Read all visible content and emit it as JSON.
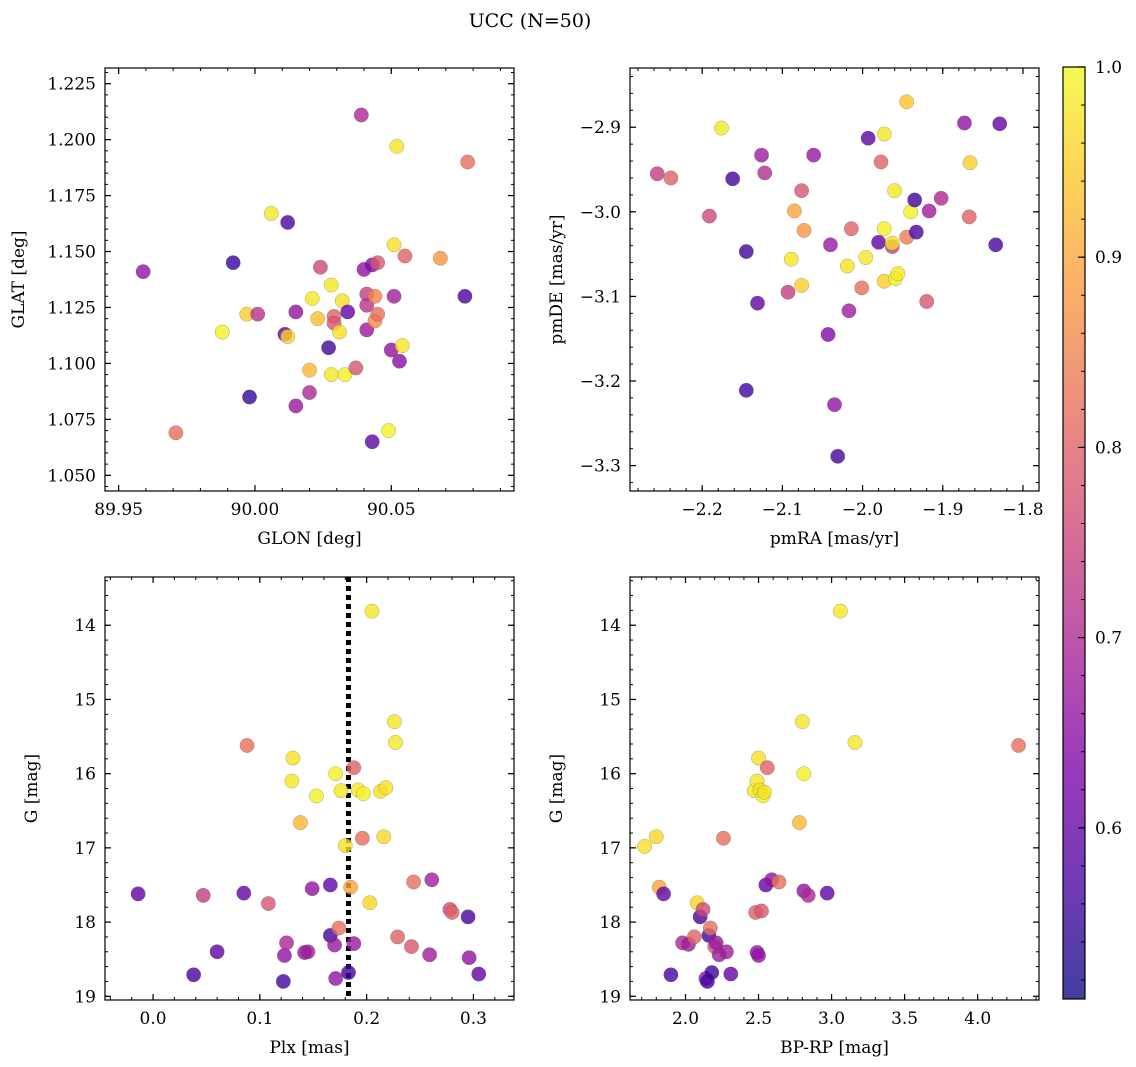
{
  "figure": {
    "title": "UCC (N=50)"
  },
  "colorbar": {
    "vmin": 0.51,
    "vmax": 1.0,
    "ticks": [
      0.6,
      0.7,
      0.8,
      0.9,
      1.0
    ],
    "tick_labels": [
      "0.6",
      "0.7",
      "0.8",
      "0.9",
      "1.0"
    ],
    "colormap": "plasma"
  },
  "chart_data": [
    {
      "type": "scatter",
      "id": "lonlat",
      "xlabel": "GLON [deg]",
      "ylabel": "GLAT [deg]",
      "xlim": [
        89.945,
        90.095
      ],
      "ylim": [
        1.043,
        1.232
      ],
      "y_inverted": false,
      "xticks": [
        89.95,
        90.0,
        90.05
      ],
      "xtick_labels": [
        "89.95",
        "90.00",
        "90.05"
      ],
      "yticks": [
        1.05,
        1.075,
        1.1,
        1.125,
        1.15,
        1.175,
        1.2,
        1.225
      ],
      "ytick_labels": [
        "1.050",
        "1.075",
        "1.100",
        "1.125",
        "1.150",
        "1.175",
        "1.200",
        "1.225"
      ],
      "points": [
        {
          "x": 89.959,
          "y": 1.141,
          "c": 0.66
        },
        {
          "x": 89.971,
          "y": 1.069,
          "c": 0.82
        },
        {
          "x": 89.988,
          "y": 1.114,
          "c": 0.99
        },
        {
          "x": 89.992,
          "y": 1.145,
          "c": 0.55
        },
        {
          "x": 89.997,
          "y": 1.122,
          "c": 0.95
        },
        {
          "x": 89.998,
          "y": 1.085,
          "c": 0.55
        },
        {
          "x": 90.001,
          "y": 1.122,
          "c": 0.72
        },
        {
          "x": 90.006,
          "y": 1.167,
          "c": 0.98
        },
        {
          "x": 90.011,
          "y": 1.113,
          "c": 0.6
        },
        {
          "x": 90.012,
          "y": 1.112,
          "c": 0.96
        },
        {
          "x": 90.012,
          "y": 1.163,
          "c": 0.57
        },
        {
          "x": 90.015,
          "y": 1.081,
          "c": 0.67
        },
        {
          "x": 90.015,
          "y": 1.123,
          "c": 0.66
        },
        {
          "x": 90.02,
          "y": 1.097,
          "c": 0.92
        },
        {
          "x": 90.02,
          "y": 1.087,
          "c": 0.7
        },
        {
          "x": 90.021,
          "y": 1.129,
          "c": 0.98
        },
        {
          "x": 90.023,
          "y": 1.12,
          "c": 0.93
        },
        {
          "x": 90.024,
          "y": 1.143,
          "c": 0.76
        },
        {
          "x": 90.027,
          "y": 1.107,
          "c": 0.56
        },
        {
          "x": 90.028,
          "y": 1.095,
          "c": 0.98
        },
        {
          "x": 90.028,
          "y": 1.135,
          "c": 0.98
        },
        {
          "x": 90.029,
          "y": 1.121,
          "c": 0.8
        },
        {
          "x": 90.029,
          "y": 1.118,
          "c": 0.78
        },
        {
          "x": 90.031,
          "y": 1.114,
          "c": 0.97
        },
        {
          "x": 90.032,
          "y": 1.128,
          "c": 0.97
        },
        {
          "x": 90.033,
          "y": 1.095,
          "c": 0.99
        },
        {
          "x": 90.034,
          "y": 1.123,
          "c": 0.6
        },
        {
          "x": 90.037,
          "y": 1.098,
          "c": 0.78
        },
        {
          "x": 90.039,
          "y": 1.211,
          "c": 0.7
        },
        {
          "x": 90.04,
          "y": 1.142,
          "c": 0.66
        },
        {
          "x": 90.041,
          "y": 1.131,
          "c": 0.74
        },
        {
          "x": 90.041,
          "y": 1.115,
          "c": 0.67
        },
        {
          "x": 90.041,
          "y": 1.126,
          "c": 0.72
        },
        {
          "x": 90.043,
          "y": 1.065,
          "c": 0.59
        },
        {
          "x": 90.043,
          "y": 1.144,
          "c": 0.64
        },
        {
          "x": 90.044,
          "y": 1.119,
          "c": 0.86
        },
        {
          "x": 90.044,
          "y": 1.13,
          "c": 0.85
        },
        {
          "x": 90.045,
          "y": 1.122,
          "c": 0.82
        },
        {
          "x": 90.045,
          "y": 1.145,
          "c": 0.78
        },
        {
          "x": 90.049,
          "y": 1.07,
          "c": 0.99
        },
        {
          "x": 90.05,
          "y": 1.106,
          "c": 0.66
        },
        {
          "x": 90.051,
          "y": 1.13,
          "c": 0.68
        },
        {
          "x": 90.051,
          "y": 1.153,
          "c": 0.97
        },
        {
          "x": 90.052,
          "y": 1.197,
          "c": 0.98
        },
        {
          "x": 90.053,
          "y": 1.101,
          "c": 0.65
        },
        {
          "x": 90.054,
          "y": 1.108,
          "c": 0.98
        },
        {
          "x": 90.055,
          "y": 1.148,
          "c": 0.8
        },
        {
          "x": 90.068,
          "y": 1.147,
          "c": 0.88
        },
        {
          "x": 90.077,
          "y": 1.13,
          "c": 0.57
        },
        {
          "x": 90.078,
          "y": 1.19,
          "c": 0.82
        }
      ]
    },
    {
      "type": "scatter",
      "id": "pm",
      "xlabel": "pmRA [mas/yr]",
      "ylabel": "pmDE [mas/yr]",
      "xlim": [
        -2.29,
        -1.78
      ],
      "ylim": [
        -3.33,
        -2.83
      ],
      "y_inverted": false,
      "xticks": [
        -2.2,
        -2.1,
        -2.0,
        -1.9,
        -1.8
      ],
      "xtick_labels": [
        "−2.2",
        "−2.1",
        "−2.0",
        "−1.9",
        "−1.8"
      ],
      "yticks": [
        -3.3,
        -3.2,
        -3.1,
        -3.0,
        -2.9
      ],
      "ytick_labels": [
        "−3.3",
        "−3.2",
        "−3.1",
        "−3.0",
        "−2.9"
      ],
      "points": [
        {
          "x": -2.256,
          "y": -2.955,
          "c": 0.74
        },
        {
          "x": -2.239,
          "y": -2.96,
          "c": 0.8
        },
        {
          "x": -2.191,
          "y": -3.005,
          "c": 0.76
        },
        {
          "x": -2.176,
          "y": -2.901,
          "c": 0.98
        },
        {
          "x": -2.162,
          "y": -2.961,
          "c": 0.56
        },
        {
          "x": -2.145,
          "y": -3.047,
          "c": 0.56
        },
        {
          "x": -2.145,
          "y": -3.211,
          "c": 0.56
        },
        {
          "x": -2.131,
          "y": -3.108,
          "c": 0.6
        },
        {
          "x": -2.126,
          "y": -2.933,
          "c": 0.68
        },
        {
          "x": -2.122,
          "y": -2.954,
          "c": 0.71
        },
        {
          "x": -2.093,
          "y": -3.095,
          "c": 0.74
        },
        {
          "x": -2.089,
          "y": -3.056,
          "c": 0.98
        },
        {
          "x": -2.085,
          "y": -2.999,
          "c": 0.9
        },
        {
          "x": -2.076,
          "y": -2.975,
          "c": 0.78
        },
        {
          "x": -2.076,
          "y": -3.087,
          "c": 0.95
        },
        {
          "x": -2.073,
          "y": -3.022,
          "c": 0.88
        },
        {
          "x": -2.061,
          "y": -2.933,
          "c": 0.67
        },
        {
          "x": -2.043,
          "y": -3.145,
          "c": 0.64
        },
        {
          "x": -2.04,
          "y": -3.039,
          "c": 0.67
        },
        {
          "x": -2.035,
          "y": -3.228,
          "c": 0.66
        },
        {
          "x": -2.031,
          "y": -3.289,
          "c": 0.57
        },
        {
          "x": -2.019,
          "y": -3.064,
          "c": 0.97
        },
        {
          "x": -2.017,
          "y": -3.117,
          "c": 0.68
        },
        {
          "x": -2.014,
          "y": -3.02,
          "c": 0.8
        },
        {
          "x": -2.001,
          "y": -3.09,
          "c": 0.82
        },
        {
          "x": -1.996,
          "y": -3.054,
          "c": 0.98
        },
        {
          "x": -1.993,
          "y": -2.913,
          "c": 0.59
        },
        {
          "x": -1.98,
          "y": -3.036,
          "c": 0.6
        },
        {
          "x": -1.977,
          "y": -2.941,
          "c": 0.8
        },
        {
          "x": -1.973,
          "y": -3.02,
          "c": 0.99
        },
        {
          "x": -1.973,
          "y": -2.908,
          "c": 0.98
        },
        {
          "x": -1.973,
          "y": -3.082,
          "c": 0.95
        },
        {
          "x": -1.963,
          "y": -3.041,
          "c": 0.74
        },
        {
          "x": -1.963,
          "y": -3.037,
          "c": 0.97
        },
        {
          "x": -1.96,
          "y": -2.975,
          "c": 0.98
        },
        {
          "x": -1.959,
          "y": -3.079,
          "c": 0.99
        },
        {
          "x": -1.956,
          "y": -3.073,
          "c": 0.98
        },
        {
          "x": -1.945,
          "y": -3.03,
          "c": 0.84
        },
        {
          "x": -1.945,
          "y": -2.87,
          "c": 0.94
        },
        {
          "x": -1.94,
          "y": -3.0,
          "c": 0.99
        },
        {
          "x": -1.935,
          "y": -2.986,
          "c": 0.56
        },
        {
          "x": -1.933,
          "y": -3.024,
          "c": 0.57
        },
        {
          "x": -1.92,
          "y": -3.106,
          "c": 0.78
        },
        {
          "x": -1.917,
          "y": -2.999,
          "c": 0.68
        },
        {
          "x": -1.902,
          "y": -2.984,
          "c": 0.7
        },
        {
          "x": -1.873,
          "y": -2.895,
          "c": 0.66
        },
        {
          "x": -1.867,
          "y": -3.006,
          "c": 0.8
        },
        {
          "x": -1.866,
          "y": -2.942,
          "c": 0.95
        },
        {
          "x": -1.834,
          "y": -3.039,
          "c": 0.57
        },
        {
          "x": -1.829,
          "y": -2.896,
          "c": 0.6
        }
      ]
    },
    {
      "type": "scatter",
      "id": "plx",
      "xlabel": "Plx [mas]",
      "ylabel": "G [mag]",
      "xlim": [
        -0.045,
        0.338
      ],
      "ylim": [
        19.05,
        13.35
      ],
      "y_inverted": true,
      "xticks": [
        0.0,
        0.1,
        0.2,
        0.3
      ],
      "xtick_labels": [
        "0.0",
        "0.1",
        "0.2",
        "0.3"
      ],
      "yticks": [
        14,
        15,
        16,
        17,
        18,
        19
      ],
      "ytick_labels": [
        "14",
        "15",
        "16",
        "17",
        "18",
        "19"
      ],
      "vline": 0.183,
      "points": [
        {
          "x": -0.014,
          "y": 17.62,
          "c": 0.6
        },
        {
          "x": 0.038,
          "y": 18.71,
          "c": 0.57
        },
        {
          "x": 0.047,
          "y": 17.64,
          "c": 0.74
        },
        {
          "x": 0.06,
          "y": 18.4,
          "c": 0.6
        },
        {
          "x": 0.085,
          "y": 17.61,
          "c": 0.6
        },
        {
          "x": 0.088,
          "y": 15.62,
          "c": 0.82
        },
        {
          "x": 0.108,
          "y": 17.75,
          "c": 0.78
        },
        {
          "x": 0.122,
          "y": 18.8,
          "c": 0.56
        },
        {
          "x": 0.123,
          "y": 18.45,
          "c": 0.66
        },
        {
          "x": 0.125,
          "y": 18.28,
          "c": 0.7
        },
        {
          "x": 0.13,
          "y": 16.1,
          "c": 0.98
        },
        {
          "x": 0.131,
          "y": 15.79,
          "c": 0.97
        },
        {
          "x": 0.138,
          "y": 16.66,
          "c": 0.92
        },
        {
          "x": 0.142,
          "y": 18.41,
          "c": 0.66
        },
        {
          "x": 0.145,
          "y": 18.4,
          "c": 0.68
        },
        {
          "x": 0.149,
          "y": 17.55,
          "c": 0.66
        },
        {
          "x": 0.153,
          "y": 16.3,
          "c": 0.99
        },
        {
          "x": 0.166,
          "y": 17.5,
          "c": 0.6
        },
        {
          "x": 0.166,
          "y": 18.18,
          "c": 0.56
        },
        {
          "x": 0.17,
          "y": 18.31,
          "c": 0.67
        },
        {
          "x": 0.171,
          "y": 16.0,
          "c": 0.99
        },
        {
          "x": 0.171,
          "y": 18.76,
          "c": 0.66
        },
        {
          "x": 0.174,
          "y": 18.08,
          "c": 0.82
        },
        {
          "x": 0.176,
          "y": 16.23,
          "c": 0.98
        },
        {
          "x": 0.18,
          "y": 16.97,
          "c": 0.97
        },
        {
          "x": 0.183,
          "y": 18.68,
          "c": 0.56
        },
        {
          "x": 0.185,
          "y": 17.53,
          "c": 0.9
        },
        {
          "x": 0.188,
          "y": 15.92,
          "c": 0.8
        },
        {
          "x": 0.188,
          "y": 18.29,
          "c": 0.67
        },
        {
          "x": 0.192,
          "y": 16.22,
          "c": 0.98
        },
        {
          "x": 0.196,
          "y": 16.87,
          "c": 0.82
        },
        {
          "x": 0.197,
          "y": 16.27,
          "c": 0.99
        },
        {
          "x": 0.203,
          "y": 17.74,
          "c": 0.96
        },
        {
          "x": 0.205,
          "y": 13.81,
          "c": 0.98
        },
        {
          "x": 0.213,
          "y": 16.24,
          "c": 0.97
        },
        {
          "x": 0.216,
          "y": 16.85,
          "c": 0.96
        },
        {
          "x": 0.218,
          "y": 16.19,
          "c": 0.97
        },
        {
          "x": 0.226,
          "y": 15.3,
          "c": 0.98
        },
        {
          "x": 0.227,
          "y": 15.58,
          "c": 0.98
        },
        {
          "x": 0.229,
          "y": 18.2,
          "c": 0.8
        },
        {
          "x": 0.242,
          "y": 18.33,
          "c": 0.78
        },
        {
          "x": 0.244,
          "y": 17.46,
          "c": 0.82
        },
        {
          "x": 0.259,
          "y": 18.44,
          "c": 0.68
        },
        {
          "x": 0.261,
          "y": 17.43,
          "c": 0.68
        },
        {
          "x": 0.278,
          "y": 17.83,
          "c": 0.76
        },
        {
          "x": 0.28,
          "y": 17.87,
          "c": 0.8
        },
        {
          "x": 0.295,
          "y": 17.93,
          "c": 0.57
        },
        {
          "x": 0.296,
          "y": 18.48,
          "c": 0.66
        },
        {
          "x": 0.305,
          "y": 18.7,
          "c": 0.6
        }
      ]
    },
    {
      "type": "scatter",
      "id": "cmd",
      "xlabel": "BP-RP [mag]",
      "ylabel": "G [mag]",
      "xlim": [
        1.62,
        4.42
      ],
      "ylim": [
        19.05,
        13.35
      ],
      "y_inverted": true,
      "xticks": [
        2.0,
        2.5,
        3.0,
        3.5,
        4.0
      ],
      "xtick_labels": [
        "2.0",
        "2.5",
        "3.0",
        "3.5",
        "4.0"
      ],
      "yticks": [
        14,
        15,
        16,
        17,
        18,
        19
      ],
      "ytick_labels": [
        "14",
        "15",
        "16",
        "17",
        "18",
        "19"
      ],
      "points": [
        {
          "x": 1.72,
          "y": 16.98,
          "c": 0.97
        },
        {
          "x": 1.8,
          "y": 16.85,
          "c": 0.96
        },
        {
          "x": 1.82,
          "y": 17.53,
          "c": 0.9
        },
        {
          "x": 1.85,
          "y": 17.62,
          "c": 0.6
        },
        {
          "x": 1.9,
          "y": 18.71,
          "c": 0.57
        },
        {
          "x": 1.98,
          "y": 18.28,
          "c": 0.7
        },
        {
          "x": 2.02,
          "y": 18.3,
          "c": 0.68
        },
        {
          "x": 2.06,
          "y": 18.2,
          "c": 0.8
        },
        {
          "x": 2.08,
          "y": 17.74,
          "c": 0.96
        },
        {
          "x": 2.1,
          "y": 17.93,
          "c": 0.57
        },
        {
          "x": 2.12,
          "y": 17.83,
          "c": 0.76
        },
        {
          "x": 2.14,
          "y": 18.76,
          "c": 0.66
        },
        {
          "x": 2.15,
          "y": 18.8,
          "c": 0.56
        },
        {
          "x": 2.16,
          "y": 18.18,
          "c": 0.56
        },
        {
          "x": 2.17,
          "y": 18.08,
          "c": 0.82
        },
        {
          "x": 2.18,
          "y": 18.68,
          "c": 0.56
        },
        {
          "x": 2.2,
          "y": 18.33,
          "c": 0.78
        },
        {
          "x": 2.21,
          "y": 18.28,
          "c": 0.67
        },
        {
          "x": 2.23,
          "y": 18.44,
          "c": 0.68
        },
        {
          "x": 2.26,
          "y": 16.87,
          "c": 0.82
        },
        {
          "x": 2.28,
          "y": 18.4,
          "c": 0.68
        },
        {
          "x": 2.31,
          "y": 18.7,
          "c": 0.6
        },
        {
          "x": 2.47,
          "y": 16.23,
          "c": 0.98
        },
        {
          "x": 2.48,
          "y": 17.87,
          "c": 0.8
        },
        {
          "x": 2.49,
          "y": 18.41,
          "c": 0.66
        },
        {
          "x": 2.49,
          "y": 16.1,
          "c": 0.98
        },
        {
          "x": 2.5,
          "y": 15.79,
          "c": 0.97
        },
        {
          "x": 2.5,
          "y": 18.45,
          "c": 0.66
        },
        {
          "x": 2.51,
          "y": 16.22,
          "c": 0.98
        },
        {
          "x": 2.52,
          "y": 17.85,
          "c": 0.78
        },
        {
          "x": 2.53,
          "y": 16.3,
          "c": 0.99
        },
        {
          "x": 2.54,
          "y": 16.25,
          "c": 0.97
        },
        {
          "x": 2.55,
          "y": 17.5,
          "c": 0.6
        },
        {
          "x": 2.56,
          "y": 15.92,
          "c": 0.8
        },
        {
          "x": 2.59,
          "y": 17.43,
          "c": 0.66
        },
        {
          "x": 2.64,
          "y": 17.46,
          "c": 0.82
        },
        {
          "x": 2.78,
          "y": 16.66,
          "c": 0.92
        },
        {
          "x": 2.8,
          "y": 15.3,
          "c": 0.98
        },
        {
          "x": 2.81,
          "y": 16.0,
          "c": 0.99
        },
        {
          "x": 2.81,
          "y": 17.58,
          "c": 0.66
        },
        {
          "x": 2.84,
          "y": 17.64,
          "c": 0.7
        },
        {
          "x": 2.97,
          "y": 17.61,
          "c": 0.6
        },
        {
          "x": 3.06,
          "y": 13.81,
          "c": 0.98
        },
        {
          "x": 3.16,
          "y": 15.58,
          "c": 0.98
        },
        {
          "x": 4.28,
          "y": 15.62,
          "c": 0.82
        }
      ]
    }
  ]
}
